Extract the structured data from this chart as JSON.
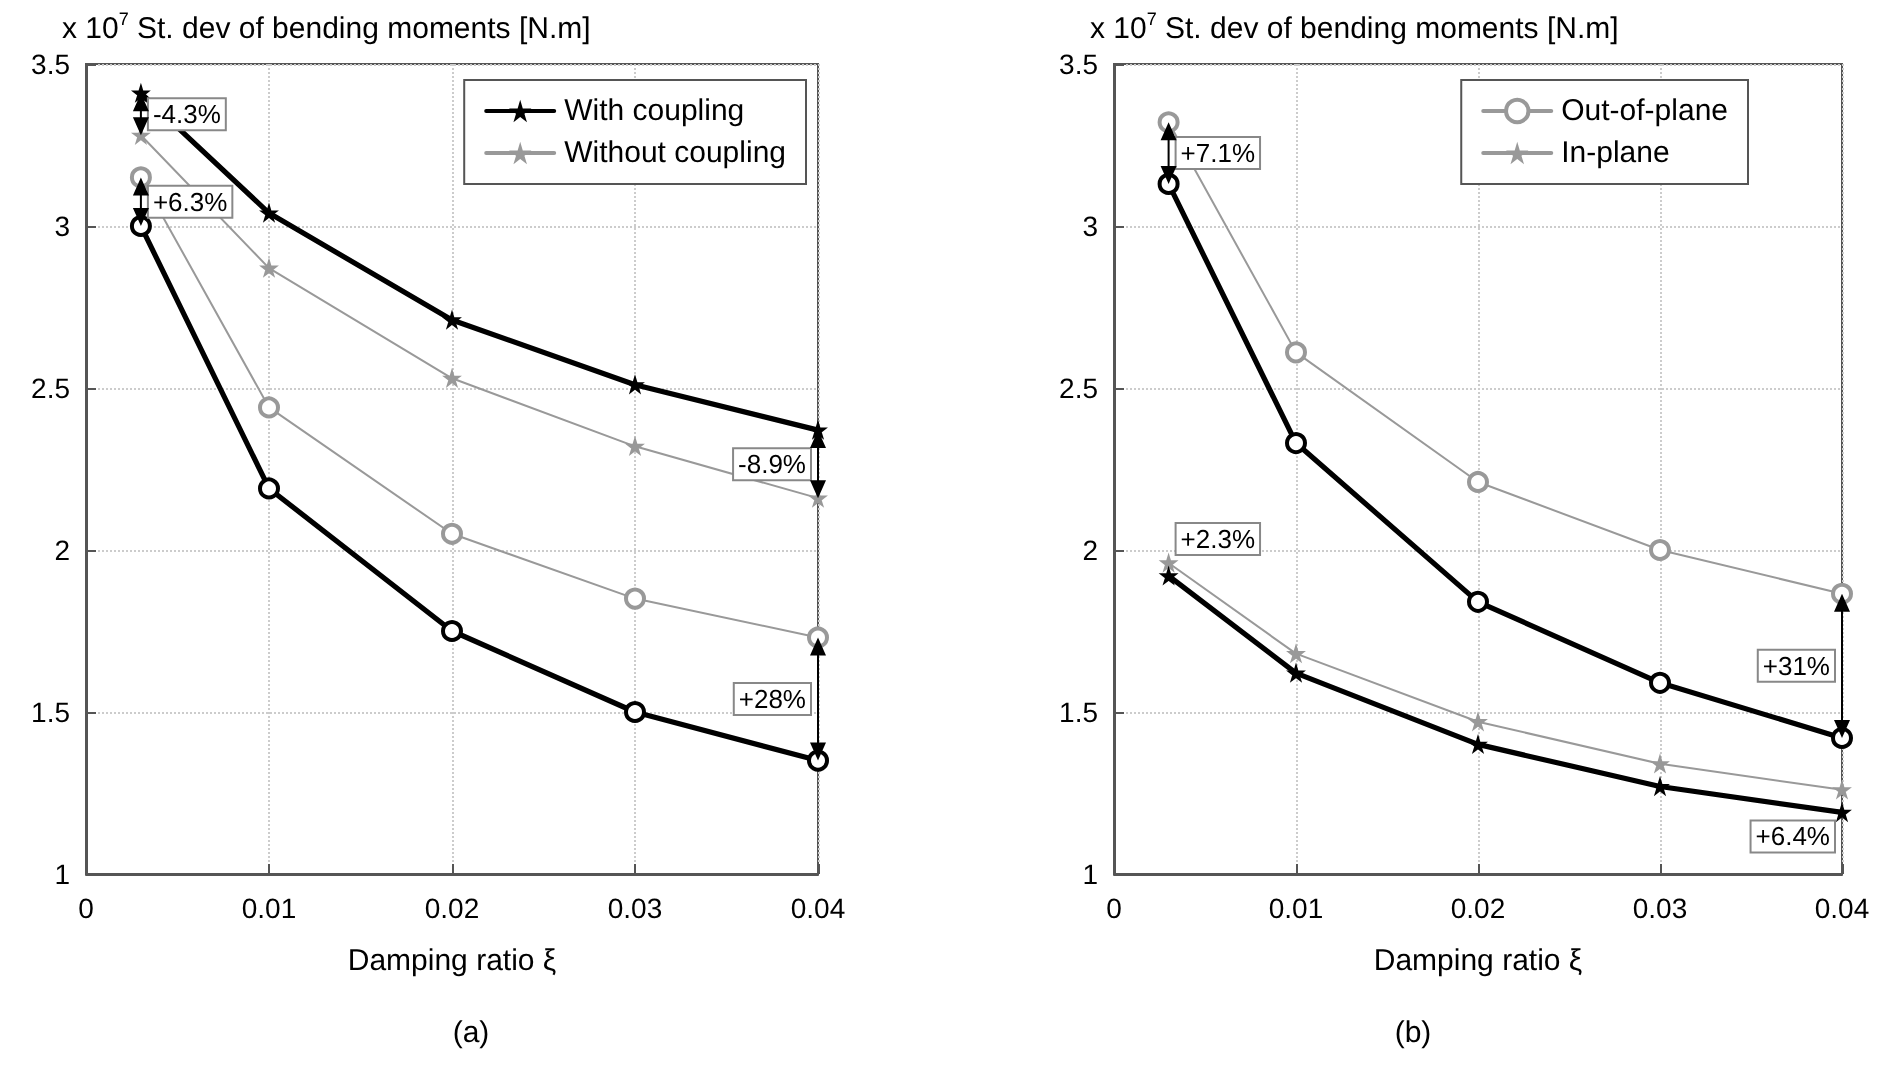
{
  "chart_data": [
    {
      "type": "line",
      "title": "(a)",
      "xlabel": "Damping ratio ξ",
      "ylabel": "x 10$^{7}$ St. dev of bending moments [N.m]",
      "xlim": [
        0,
        0.04
      ],
      "ylim": [
        1,
        3.5
      ],
      "xticks": [
        0,
        0.01,
        0.02,
        0.03,
        0.04
      ],
      "yticks": [
        1,
        1.5,
        2,
        2.5,
        3,
        3.5
      ],
      "grid": true,
      "legend": "top right",
      "x": [
        0.003,
        0.01,
        0.02,
        0.03,
        0.04
      ],
      "series": [
        {
          "name": "With coupling",
          "color": "#000000",
          "marker": "star",
          "values": [
            3.41,
            3.04,
            2.71,
            2.51,
            2.37
          ]
        },
        {
          "name": "Without coupling",
          "color": "#999999",
          "marker": "star",
          "values": [
            3.28,
            2.87,
            2.53,
            2.32,
            2.16
          ]
        },
        {
          "color": "#999999",
          "marker": "circle",
          "values": [
            3.15,
            2.44,
            2.05,
            1.85,
            1.73
          ]
        },
        {
          "color": "#000000",
          "marker": "circle",
          "values": [
            3.0,
            2.19,
            1.75,
            1.5,
            1.35
          ]
        }
      ],
      "annotations": [
        "-4.3%",
        "+6.3%",
        "-8.9%",
        "+28%"
      ]
    },
    {
      "type": "line",
      "title": "(b)",
      "xlabel": "Damping ratio ξ",
      "ylabel": "x 10$^{7}$ St. dev of bending moments [N.m]",
      "xlim": [
        0,
        0.04
      ],
      "ylim": [
        1,
        3.5
      ],
      "xticks": [
        0,
        0.01,
        0.02,
        0.03,
        0.04
      ],
      "yticks": [
        1,
        1.5,
        2,
        2.5,
        3,
        3.5
      ],
      "grid": true,
      "legend": "top right",
      "x": [
        0.003,
        0.01,
        0.02,
        0.03,
        0.04
      ],
      "series": [
        {
          "name": "Out-of-plane",
          "color": "#999999",
          "marker": "circle",
          "values": [
            3.32,
            2.61,
            2.21,
            2.0,
            1.865
          ]
        },
        {
          "name": "In-plane",
          "color": "#999999",
          "marker": "star",
          "values": [
            1.96,
            1.68,
            1.47,
            1.34,
            1.26
          ]
        },
        {
          "color": "#000000",
          "marker": "circle",
          "values": [
            3.13,
            2.33,
            1.84,
            1.59,
            1.42
          ]
        },
        {
          "color": "#000000",
          "marker": "star",
          "values": [
            1.92,
            1.62,
            1.4,
            1.27,
            1.19
          ]
        }
      ],
      "annotations": [
        "+7.1%",
        "+2.3%",
        "+31%",
        "+6.4%"
      ]
    }
  ]
}
